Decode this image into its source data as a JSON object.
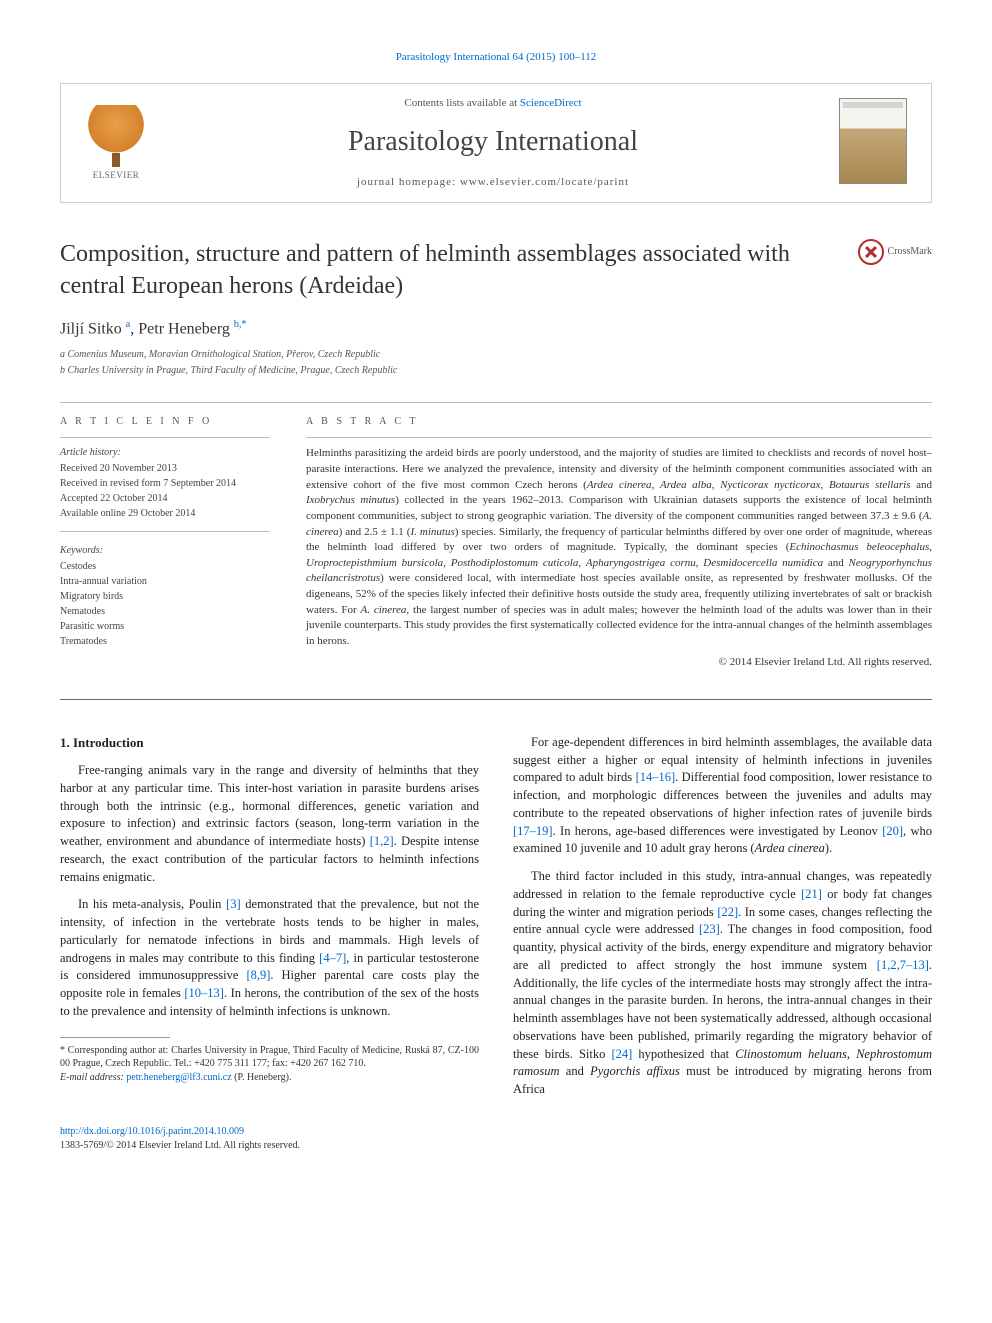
{
  "top_link": "Parasitology International 64 (2015) 100–112",
  "header": {
    "contents_line_prefix": "Contents lists available at ",
    "contents_line_link": "ScienceDirect",
    "journal_name": "Parasitology International",
    "homepage_prefix": "journal homepage: ",
    "homepage_url": "www.elsevier.com/locate/parint",
    "publisher_logo_text": "ELSEVIER"
  },
  "title": "Composition, structure and pattern of helminth assemblages associated with central European herons (Ardeidae)",
  "crossmark_label": "CrossMark",
  "authors_html": "Jiljí Sitko <sup>a</sup>, Petr Heneberg <sup>b,*</sup>",
  "affiliations": [
    "a  Comenius Museum, Moravian Ornithological Station, Přerov, Czech Republic",
    "b  Charles University in Prague, Third Faculty of Medicine, Prague, Czech Republic"
  ],
  "article_info": {
    "heading": "A R T I C L E   I N F O",
    "history_label": "Article history:",
    "history": [
      "Received 20 November 2013",
      "Received in revised form 7 September 2014",
      "Accepted 22 October 2014",
      "Available online 29 October 2014"
    ],
    "keywords_label": "Keywords:",
    "keywords": [
      "Cestodes",
      "Intra-annual variation",
      "Migratory birds",
      "Nematodes",
      "Parasitic worms",
      "Trematodes"
    ]
  },
  "abstract": {
    "heading": "A B S T R A C T",
    "text": "Helminths parasitizing the ardeid birds are poorly understood, and the majority of studies are limited to checklists and records of novel host–parasite interactions. Here we analyzed the prevalence, intensity and diversity of the helminth component communities associated with an extensive cohort of the five most common Czech herons (Ardea cinerea, Ardea alba, Nycticorax nycticorax, Botaurus stellaris and Ixobrychus minutus) collected in the years 1962–2013. Comparison with Ukrainian datasets supports the existence of local helminth component communities, subject to strong geographic variation. The diversity of the component communities ranged between 37.3 ± 9.6 (A. cinerea) and 2.5 ± 1.1 (I. minutus) species. Similarly, the frequency of particular helminths differed by over one order of magnitude, whereas the helminth load differed by over two orders of magnitude. Typically, the dominant species (Echinochasmus beleocephalus, Uroproctepisthmium bursicola, Posthodiplostomum cuticola, Apharyngostrigea cornu, Desmidocercella numidica and Neogryporhynchus cheilancristrotus) were considered local, with intermediate host species available onsite, as represented by freshwater mollusks. Of the digeneans, 52% of the species likely infected their definitive hosts outside the study area, frequently utilizing invertebrates of salt or brackish waters. For A. cinerea, the largest number of species was in adult males; however the helminth load of the adults was lower than in their juvenile counterparts. This study provides the first systematically collected evidence for the intra-annual changes of the helminth assemblages in herons.",
    "copyright": "© 2014 Elsevier Ireland Ltd. All rights reserved."
  },
  "body": {
    "section_heading": "1. Introduction",
    "p1": "Free-ranging animals vary in the range and diversity of helminths that they harbor at any particular time. This inter-host variation in parasite burdens arises through both the intrinsic (e.g., hormonal differences, genetic variation and exposure to infection) and extrinsic factors (season, long-term variation in the weather, environment and abundance of intermediate hosts) [1,2]. Despite intense research, the exact contribution of the particular factors to helminth infections remains enigmatic.",
    "p2": "In his meta-analysis, Poulin [3] demonstrated that the prevalence, but not the intensity, of infection in the vertebrate hosts tends to be higher in males, particularly for nematode infections in birds and mammals. High levels of androgens in males may contribute to this finding [4–7], in particular testosterone is considered immunosuppressive [8,9]. Higher parental care costs play the opposite role in females [10–13]. In herons, the contribution of the sex of the hosts to the prevalence and intensity of helminth infections is unknown.",
    "p3": "For age-dependent differences in bird helminth assemblages, the available data suggest either a higher or equal intensity of helminth infections in juveniles compared to adult birds [14–16]. Differential food composition, lower resistance to infection, and morphologic differences between the juveniles and adults may contribute to the repeated observations of higher infection rates of juvenile birds [17–19]. In herons, age-based differences were investigated by Leonov [20], who examined 10 juvenile and 10 adult gray herons (Ardea cinerea).",
    "p4": "The third factor included in this study, intra-annual changes, was repeatedly addressed in relation to the female reproductive cycle [21] or body fat changes during the winter and migration periods [22]. In some cases, changes reflecting the entire annual cycle were addressed [23]. The changes in food composition, food quantity, physical activity of the birds, energy expenditure and migratory behavior are all predicted to affect strongly the host immune system [1,2,7–13]. Additionally, the life cycles of the intermediate hosts may strongly affect the intra-annual changes in the parasite burden. In herons, the intra-annual changes in their helminth assemblages have not been systematically addressed, although occasional observations have been published, primarily regarding the migratory behavior of these birds. Sitko [24] hypothesized that Clinostomum heluans, Nephrostomum ramosum and Pygorchis affixus must be introduced by migrating herons from Africa"
  },
  "footnote": {
    "corr_label": "* Corresponding author at: Charles University in Prague, Third Faculty of Medicine, Ruská 87, CZ-100 00 Prague, Czech Republic. Tel.: +420 775 311 177; fax: +420 267 162 710.",
    "email_label": "E-mail address: ",
    "email": "petr.heneberg@lf3.cuni.cz",
    "email_suffix": " (P. Heneberg)."
  },
  "footer": {
    "doi": "http://dx.doi.org/10.1016/j.parint.2014.10.009",
    "issn_line": "1383-5769/© 2014 Elsevier Ireland Ltd. All rights reserved."
  },
  "colors": {
    "link": "#0066cc",
    "text": "#333333",
    "rule": "#bbbbbb",
    "elsevier_orange": "#d4822a"
  }
}
